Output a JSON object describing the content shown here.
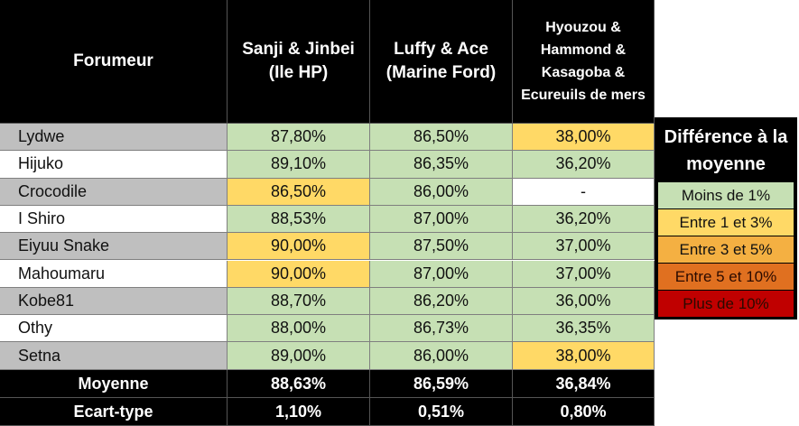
{
  "header": {
    "col0": "Forumeur",
    "col1": "Sanji & Jinbei (Ile HP)",
    "col2": "Luffy & Ace (Marine Ford)",
    "col3": "Hyouzou & Hammond & Kasagoba & Ecureuils de mers"
  },
  "rows": [
    {
      "name": "Lydwe",
      "v1": "87,80%",
      "v2": "86,50%",
      "v3": "38,00%"
    },
    {
      "name": "Hijuko",
      "v1": "89,10%",
      "v2": "86,35%",
      "v3": "36,20%"
    },
    {
      "name": "Crocodile",
      "v1": "86,50%",
      "v2": "86,00%",
      "v3": "-"
    },
    {
      "name": "I Shiro",
      "v1": "88,53%",
      "v2": "87,00%",
      "v3": "36,20%"
    },
    {
      "name": "Eiyuu Snake",
      "v1": "90,00%",
      "v2": "87,50%",
      "v3": "37,00%"
    },
    {
      "name": "Mahoumaru",
      "v1": "90,00%",
      "v2": "87,00%",
      "v3": "37,00%"
    },
    {
      "name": "Kobe81",
      "v1": "88,70%",
      "v2": "86,20%",
      "v3": "36,00%"
    },
    {
      "name": "Othy",
      "v1": "88,00%",
      "v2": "86,73%",
      "v3": "36,35%"
    },
    {
      "name": "Setna",
      "v1": "89,00%",
      "v2": "86,00%",
      "v3": "38,00%"
    }
  ],
  "footer": {
    "mean_label": "Moyenne",
    "mean1": "88,63%",
    "mean2": "86,59%",
    "mean3": "36,84%",
    "std_label": "Ecart-type",
    "std1": "1,10%",
    "std2": "0,51%",
    "std3": "0,80%"
  },
  "legend": {
    "title": "Différence à la moyenne",
    "items": [
      {
        "label": "Moins de 1%",
        "color": "#c6e0b4"
      },
      {
        "label": "Entre 1 et 3%",
        "color": "#ffd966"
      },
      {
        "label": "Entre 3 et 5%",
        "color": "#f4b042"
      },
      {
        "label": "Entre 5 et 10%",
        "color": "#e07020"
      },
      {
        "label": "Plus de 10%",
        "color": "#c00000"
      }
    ]
  },
  "colors": {
    "green": "#c6e0b4",
    "yellow": "#ffd966",
    "white": "#ffffff",
    "name_gray": "#bfbfbf",
    "header": "#000000"
  }
}
